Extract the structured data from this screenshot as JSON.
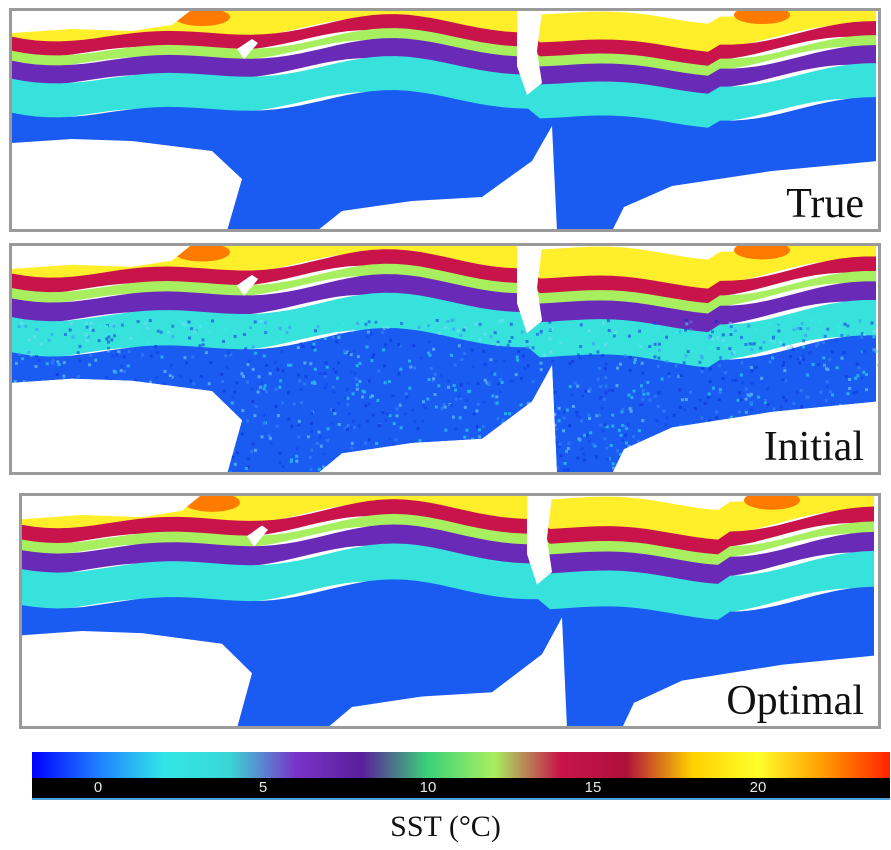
{
  "panels": [
    {
      "id": "true",
      "label": "True",
      "noise": 0
    },
    {
      "id": "initial",
      "label": "Initial",
      "noise": 1
    },
    {
      "id": "optimal",
      "label": "Optimal",
      "noise": 0
    }
  ],
  "colorbar": {
    "label": "SST (°C)",
    "ticks": [
      "0",
      "5",
      "10",
      "15",
      "20"
    ],
    "tick_values": [
      0,
      5,
      10,
      15,
      20
    ],
    "range": [
      -2,
      24
    ],
    "colors": [
      "#0000ff",
      "#1f7fff",
      "#33e6e6",
      "#3ad6d6",
      "#7a33c8",
      "#5a1f9a",
      "#3bd27a",
      "#a8ef60",
      "#c8144a",
      "#b0103c",
      "#ffd000",
      "#ffff2a",
      "#ff9a00",
      "#ff2200"
    ]
  }
}
